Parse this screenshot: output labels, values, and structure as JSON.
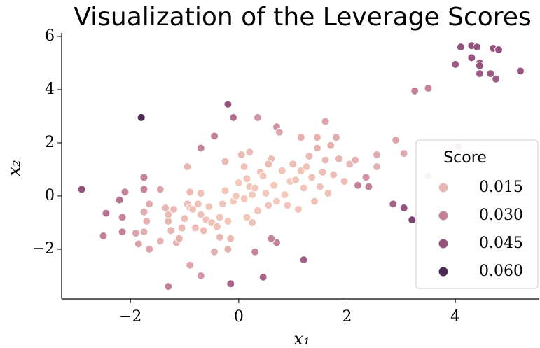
{
  "chart_data": {
    "type": "scatter",
    "title": "Visualization of the Leverage Scores",
    "x_label": "x₁",
    "y_label": "x₂",
    "xlim": [
      -3.27,
      5.55
    ],
    "ylim": [
      -3.87,
      6.13
    ],
    "xticks": [
      {
        "value": -2,
        "label": "−2"
      },
      0,
      2,
      4
    ],
    "yticks": [
      {
        "value": -2,
        "label": "−2"
      },
      0,
      2,
      4,
      6
    ],
    "legend": {
      "title": "Score",
      "position": "lower right",
      "entries": [
        {
          "value": 0.015,
          "label": "0.015",
          "color": "#e8b7b3"
        },
        {
          "value": 0.03,
          "label": "0.030",
          "color": "#c4829a"
        },
        {
          "value": 0.045,
          "label": "0.045",
          "color": "#94527f"
        },
        {
          "value": 0.06,
          "label": "0.060",
          "color": "#4a2a55"
        }
      ]
    },
    "series": [
      {
        "x": [
          -1.8,
          -0.2,
          -2.9,
          3.2,
          3.05,
          2.85,
          1.2,
          0.45,
          -0.15,
          4.1,
          4.3,
          4.4,
          4.7,
          4.8,
          4.3,
          4.45,
          4.45,
          4.0,
          4.45,
          4.65,
          4.75,
          5.2,
          3.25,
          3.5,
          -0.1,
          -0.45,
          -0.7,
          -2.45,
          -2.2,
          -2.1,
          -2.15,
          -2.5,
          -2.15,
          -1.75,
          -1.75,
          -1.3,
          0.3,
          0.7,
          0.6,
          0.7,
          0.75,
          0.35,
          2.2,
          2.4,
          2.35,
          3.05,
          2.9,
          4.05,
          3.5,
          -0.7,
          -0.9,
          -1.85,
          -1.65,
          -1.75,
          -1.7,
          -1.75,
          -1.65,
          -1.45,
          -1.35,
          -1.3,
          -1.25,
          -1.2,
          -1.15,
          -1.1,
          -1.05,
          -1.0,
          -0.95,
          -0.9,
          -0.9,
          -0.85,
          -0.8,
          -0.75,
          -0.7,
          -0.7,
          -0.6,
          -0.65,
          -0.55,
          -0.5,
          -0.45,
          -0.4,
          -0.35,
          -0.3,
          -0.25,
          -0.2,
          -0.15,
          -0.1,
          -0.05,
          0.0,
          0.1,
          0.15,
          0.1,
          0.2,
          0.25,
          0.3,
          0.35,
          0.4,
          0.45,
          0.5,
          0.55,
          0.6,
          0.65,
          0.7,
          0.8,
          0.85,
          0.9,
          0.95,
          1.0,
          1.05,
          1.1,
          1.15,
          1.2,
          1.25,
          1.3,
          1.35,
          1.4,
          1.45,
          1.5,
          1.55,
          1.6,
          1.65,
          1.7,
          1.75,
          1.8,
          1.85,
          1.95,
          2.05,
          2.15,
          1.6,
          1.15,
          0.05,
          -0.25,
          -0.95,
          -1.45,
          -1.9,
          -1.3,
          -0.35,
          0.15,
          0.25,
          -0.2,
          2.55,
          2.55,
          0.2,
          0.55,
          1.45
        ],
        "values": [
          2.95,
          3.45,
          0.25,
          -0.9,
          -0.45,
          -0.3,
          -2.4,
          -3.05,
          -3.3,
          5.6,
          5.65,
          5.6,
          5.55,
          5.5,
          5.2,
          5.0,
          4.9,
          4.95,
          4.6,
          4.6,
          4.4,
          4.7,
          3.95,
          4.05,
          2.95,
          2.25,
          1.8,
          -0.65,
          -0.15,
          0.15,
          -0.8,
          -1.5,
          -1.35,
          0.7,
          0.25,
          -3.4,
          -2.1,
          -1.75,
          -1.6,
          2.6,
          2.4,
          2.95,
          0.4,
          0.35,
          0.7,
          1.6,
          2.1,
          1.85,
          0.75,
          -3.0,
          -2.6,
          -1.8,
          -2.0,
          -1.35,
          -0.95,
          -0.6,
          -0.3,
          0.25,
          -0.45,
          -0.95,
          -1.3,
          -0.5,
          -1.75,
          -1.6,
          -1.2,
          -0.85,
          -0.3,
          -0.45,
          0.15,
          -0.5,
          -1.2,
          -0.3,
          0.1,
          -0.7,
          -0.9,
          -1.3,
          -0.4,
          -1.0,
          -2.1,
          -1.15,
          -0.8,
          -0.3,
          0.2,
          -0.95,
          -1.6,
          -0.2,
          0.0,
          0.5,
          1.1,
          0.65,
          -0.1,
          0.35,
          0.05,
          0.3,
          -0.55,
          0.9,
          0.75,
          0.1,
          -0.35,
          1.4,
          0.4,
          -0.2,
          0.95,
          0.05,
          -0.35,
          0.55,
          1.2,
          0.6,
          -0.5,
          0.95,
          0.3,
          1.1,
          1.5,
          0.7,
          -0.2,
          1.8,
          0.35,
          0.9,
          1.35,
          0.1,
          1.9,
          0.8,
          2.2,
          1.4,
          0.55,
          1.2,
          1.35,
          2.8,
          2.2,
          1.55,
          1.3,
          1.1,
          -1.7,
          -1.4,
          -0.7,
          -1.55,
          -0.8,
          -1.0,
          -2.0,
          1.55,
          1.1,
          1.65,
          1.2,
          2.2
        ],
        "scores": [
          0.06,
          0.045,
          0.045,
          0.05,
          0.045,
          0.04,
          0.04,
          0.04,
          0.04,
          0.045,
          0.045,
          0.045,
          0.045,
          0.045,
          0.045,
          0.045,
          0.045,
          0.042,
          0.042,
          0.042,
          0.042,
          0.045,
          0.03,
          0.03,
          0.035,
          0.03,
          0.03,
          0.035,
          0.035,
          0.03,
          0.03,
          0.03,
          0.03,
          0.03,
          0.03,
          0.03,
          0.03,
          0.03,
          0.03,
          0.025,
          0.02,
          0.025,
          0.03,
          0.03,
          0.025,
          0.02,
          0.02,
          0.015,
          0.015,
          0.025,
          0.02,
          0.02,
          0.02,
          0.018,
          0.016,
          0.018,
          0.018,
          0.02,
          0.015,
          0.015,
          0.015,
          0.014,
          0.016,
          0.016,
          0.014,
          0.013,
          0.013,
          0.012,
          0.014,
          0.012,
          0.013,
          0.012,
          0.012,
          0.012,
          0.012,
          0.013,
          0.011,
          0.012,
          0.017,
          0.012,
          0.011,
          0.011,
          0.011,
          0.011,
          0.014,
          0.01,
          0.01,
          0.01,
          0.012,
          0.011,
          0.01,
          0.01,
          0.01,
          0.01,
          0.011,
          0.011,
          0.011,
          0.01,
          0.011,
          0.013,
          0.01,
          0.01,
          0.011,
          0.01,
          0.011,
          0.011,
          0.013,
          0.011,
          0.012,
          0.012,
          0.011,
          0.012,
          0.014,
          0.012,
          0.012,
          0.016,
          0.012,
          0.013,
          0.014,
          0.012,
          0.017,
          0.013,
          0.018,
          0.015,
          0.013,
          0.015,
          0.016,
          0.02,
          0.017,
          0.014,
          0.014,
          0.015,
          0.016,
          0.02,
          0.014,
          0.015,
          0.011,
          0.012,
          0.017,
          0.018,
          0.017,
          0.013,
          0.013,
          0.016
        ]
      }
    ]
  }
}
